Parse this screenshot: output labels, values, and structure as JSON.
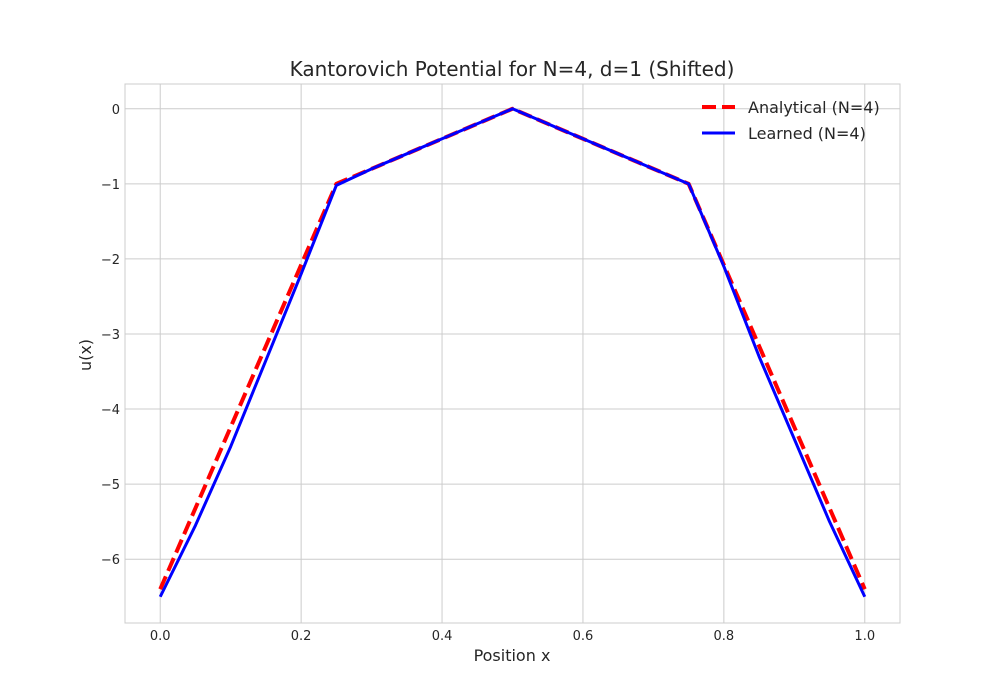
{
  "chart_data": {
    "type": "line",
    "title": "Kantorovich Potential for N=4, d=1 (Shifted)",
    "xlabel": "Position x",
    "ylabel": "u(x)",
    "xlim": [
      -0.05,
      1.05
    ],
    "ylim": [
      -6.85,
      0.33
    ],
    "xticks": [
      0.0,
      0.2,
      0.4,
      0.6,
      0.8,
      1.0
    ],
    "xtick_labels": [
      "0.0",
      "0.2",
      "0.4",
      "0.6",
      "0.8",
      "1.0"
    ],
    "yticks": [
      0,
      -1,
      -2,
      -3,
      -4,
      -5,
      -6
    ],
    "ytick_labels": [
      "0",
      "−1",
      "−2",
      "−3",
      "−4",
      "−5",
      "−6"
    ],
    "grid": true,
    "legend_position": "top-right",
    "series": [
      {
        "name": "Analytical (N=4)",
        "color": "#ff0000",
        "style": "dashed",
        "x": [
          0.0,
          0.25,
          0.5,
          0.75,
          1.0
        ],
        "y": [
          -6.4,
          -1.0,
          0.0,
          -1.0,
          -6.4
        ]
      },
      {
        "name": "Learned (N=4)",
        "color": "#0000ff",
        "style": "solid",
        "x": [
          0.0,
          0.05,
          0.1,
          0.15,
          0.2,
          0.25,
          0.3,
          0.35,
          0.4,
          0.45,
          0.5,
          0.55,
          0.6,
          0.65,
          0.7,
          0.75,
          0.8,
          0.85,
          0.9,
          0.95,
          1.0
        ],
        "y": [
          -6.5,
          -5.55,
          -4.5,
          -3.35,
          -2.2,
          -1.02,
          -0.8,
          -0.6,
          -0.4,
          -0.2,
          0.0,
          -0.2,
          -0.4,
          -0.6,
          -0.8,
          -1.0,
          -2.1,
          -3.3,
          -4.4,
          -5.5,
          -6.5
        ]
      }
    ]
  }
}
